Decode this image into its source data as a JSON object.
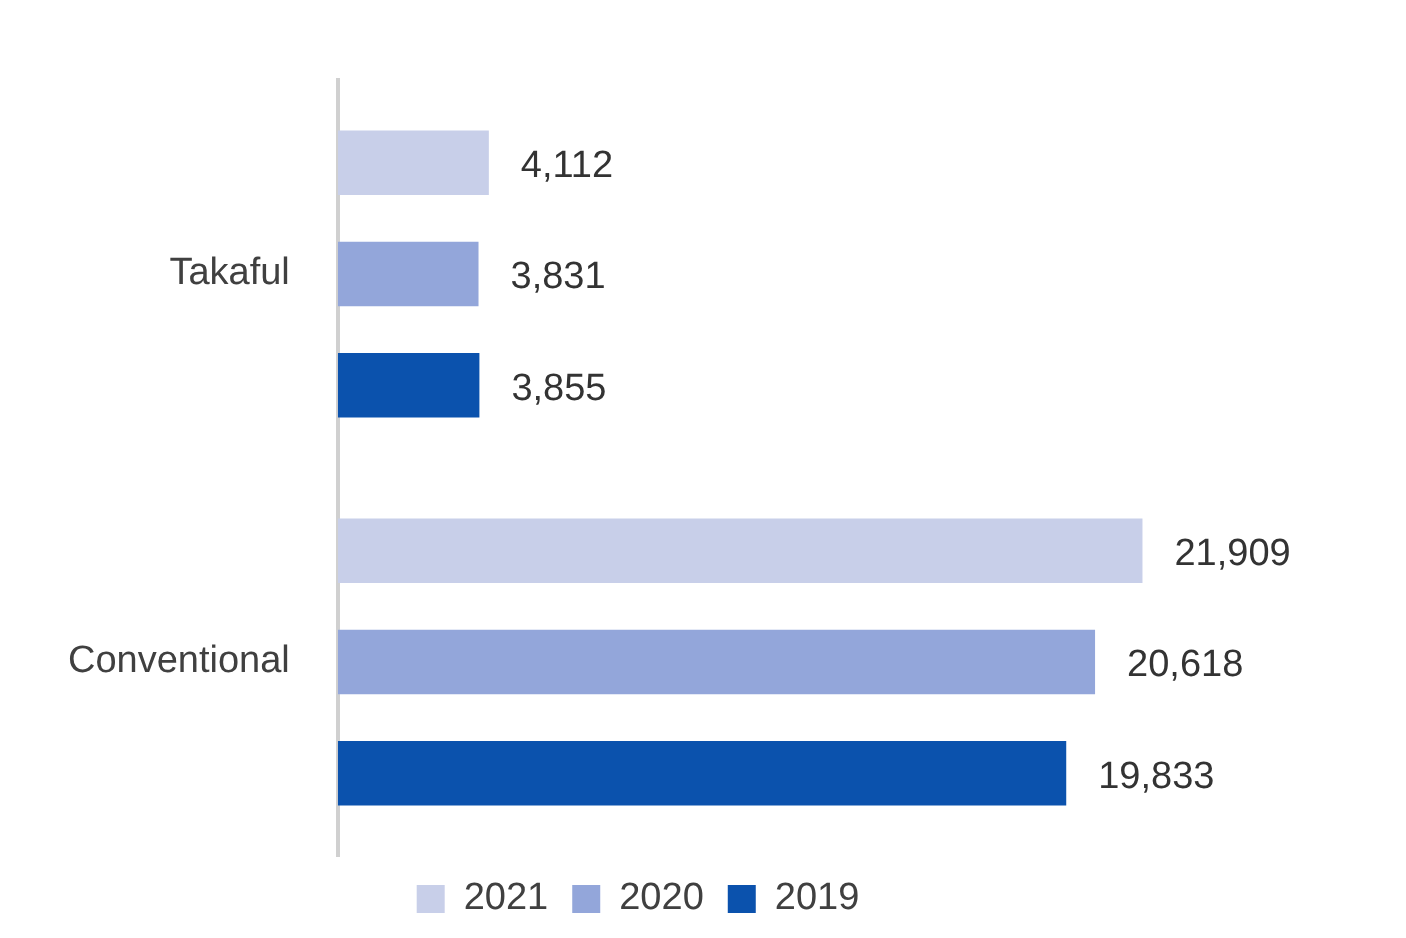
{
  "chart_data": {
    "type": "bar",
    "orientation": "horizontal",
    "categories": [
      "Takaful",
      "Conventional"
    ],
    "series": [
      {
        "name": "2021",
        "color": "#c8cfe9",
        "values": [
          4112,
          21909
        ],
        "value_labels": [
          "4,112",
          "21,909"
        ]
      },
      {
        "name": "2020",
        "color": "#93a6da",
        "values": [
          3831,
          20618
        ],
        "value_labels": [
          "3,831",
          "20,618"
        ]
      },
      {
        "name": "2019",
        "color": "#0b52ad",
        "values": [
          3855,
          19833
        ],
        "value_labels": [
          "3,855",
          "19,833"
        ]
      }
    ],
    "legend": "bottom",
    "grid": false,
    "tick_labels": "y"
  }
}
